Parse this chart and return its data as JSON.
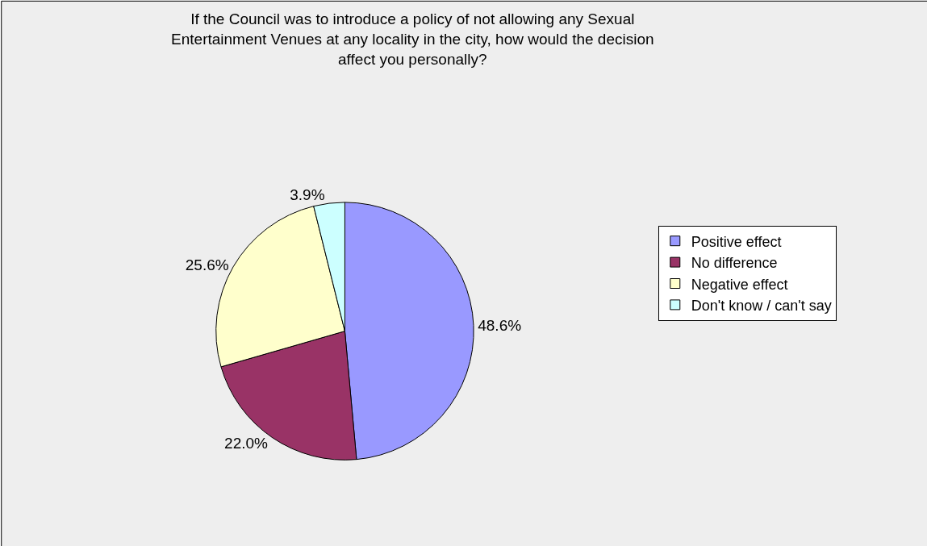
{
  "chart_data": {
    "type": "pie",
    "title": "If the Council was to introduce a policy of not allowing any Sexual Entertainment Venues at any locality in the city, how would the decision affect you personally?",
    "categories": [
      "Positive effect",
      "No difference",
      "Negative effect",
      "Don't know / can't say"
    ],
    "values": [
      48.6,
      22.0,
      25.6,
      3.9
    ],
    "value_labels": [
      "48.6%",
      "22.0%",
      "25.6%",
      "3.9%"
    ],
    "colors": [
      "#9999ff",
      "#993366",
      "#ffffcc",
      "#ccffff"
    ],
    "legend": "right"
  }
}
